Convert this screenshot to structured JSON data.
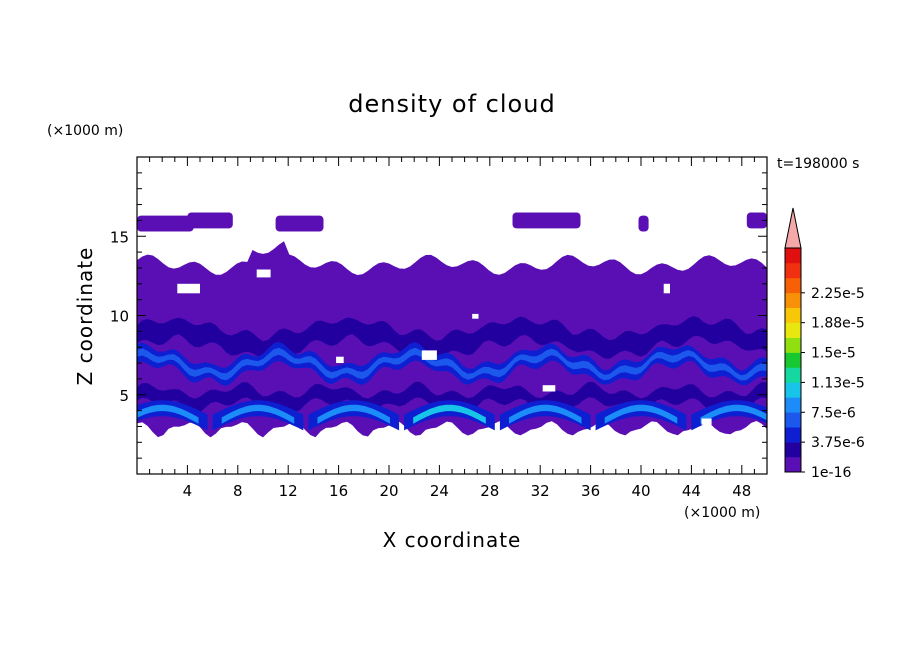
{
  "chart_data": {
    "type": "heatmap",
    "title": "density of cloud",
    "xlabel": "X coordinate",
    "ylabel": "Z coordinate",
    "x_unit": "(×1000 m)",
    "y_unit": "(×1000 m)",
    "time_label": "t=198000 s",
    "xlim": [
      0,
      50
    ],
    "ylim": [
      0,
      20
    ],
    "x_ticks": [
      4,
      8,
      12,
      16,
      20,
      24,
      28,
      32,
      36,
      40,
      44,
      48
    ],
    "y_ticks": [
      5,
      10,
      15
    ],
    "colorbar": {
      "labels": [
        "1e-16",
        "3.75e-6",
        "7.5e-6",
        "1.13e-5",
        "1.5e-5",
        "1.88e-5",
        "2.25e-5"
      ],
      "colors": [
        "#5a0fb4",
        "#2200a0",
        "#0d1fd0",
        "#1c58ec",
        "#1c8cf8",
        "#18c4e8",
        "#14d8a0",
        "#18c830",
        "#90e010",
        "#e8e810",
        "#f8c808",
        "#f89008",
        "#f86008",
        "#f03010",
        "#e01010"
      ],
      "overflow_color": "#f4a8a8"
    },
    "bands": [
      {
        "name": "upper-patches",
        "z_range": [
          15.3,
          16.6
        ],
        "level": 0
      },
      {
        "name": "main-cloud",
        "z_range": [
          2.3,
          13.4
        ],
        "level": 0
      },
      {
        "name": "mid-layer",
        "z_range": [
          6.2,
          7.6
        ],
        "level": 2
      },
      {
        "name": "lower-layer",
        "z_range": [
          3.0,
          4.6
        ],
        "level": 3
      }
    ]
  }
}
